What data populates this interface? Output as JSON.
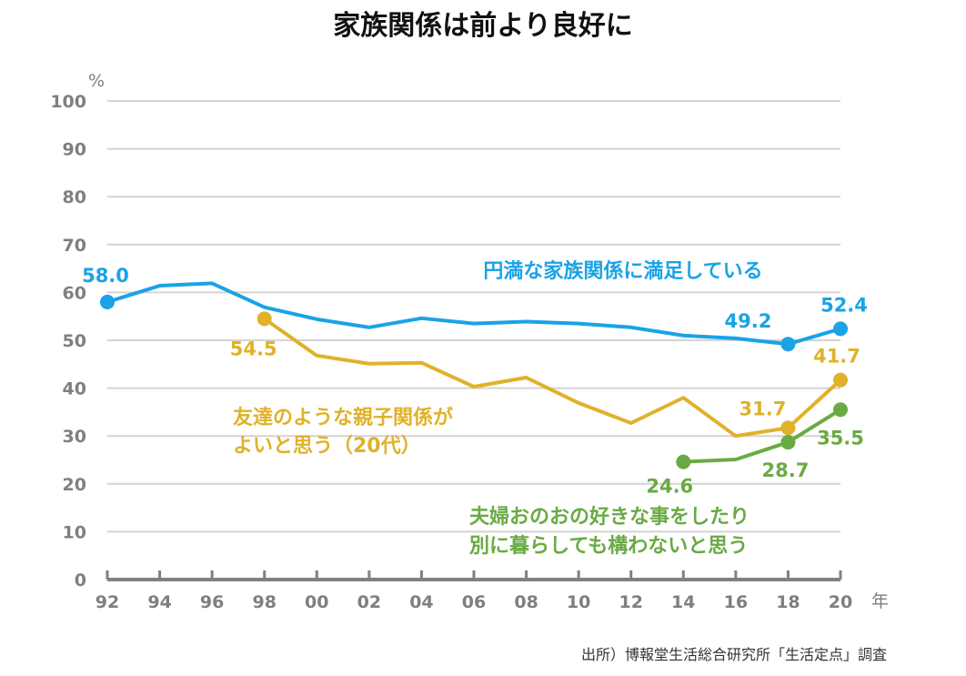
{
  "chart_data": {
    "type": "line",
    "title": "家族関係は前より良好に",
    "ylabel": "%",
    "xlabel": "年",
    "ylim": [
      0,
      100
    ],
    "yticks": [
      "0",
      "10",
      "20",
      "30",
      "40",
      "50",
      "60",
      "70",
      "80",
      "90",
      "100"
    ],
    "x": [
      "92",
      "94",
      "96",
      "98",
      "00",
      "02",
      "04",
      "06",
      "08",
      "10",
      "12",
      "14",
      "16",
      "18",
      "20"
    ],
    "grid": true,
    "series": [
      {
        "name": "円満な家族関係に満足している",
        "color": "#1aa3e6",
        "values": [
          58.0,
          61.4,
          61.9,
          56.9,
          54.4,
          52.7,
          54.6,
          53.5,
          53.9,
          53.5,
          52.7,
          51.0,
          50.4,
          49.2,
          52.4
        ],
        "labeled": [
          {
            "index": 0,
            "text": "58.0"
          },
          {
            "index": 13,
            "text": "49.2"
          },
          {
            "index": 14,
            "text": "52.4"
          }
        ]
      },
      {
        "name": "友達のような親子関係がよいと思う（20代）",
        "name_lines": [
          "友達のような親子関係が",
          "よいと思う（20代）"
        ],
        "color": "#e0b22a",
        "values": [
          null,
          null,
          null,
          54.5,
          46.8,
          45.1,
          45.3,
          40.3,
          42.2,
          36.9,
          32.7,
          38.0,
          30.0,
          31.7,
          41.7
        ],
        "labeled": [
          {
            "index": 3,
            "text": "54.5"
          },
          {
            "index": 13,
            "text": "31.7"
          },
          {
            "index": 14,
            "text": "41.7"
          }
        ]
      },
      {
        "name": "夫婦おのおの好きな事をしたり別に暮らしても構わないと思う",
        "name_lines": [
          "夫婦おのおの好きな事をしたり",
          "別に暮らしても構わないと思う"
        ],
        "color": "#6aaa44",
        "values": [
          null,
          null,
          null,
          null,
          null,
          null,
          null,
          null,
          null,
          null,
          null,
          24.6,
          25.1,
          28.7,
          35.5
        ],
        "labeled": [
          {
            "index": 11,
            "text": "24.6"
          },
          {
            "index": 13,
            "text": "28.7"
          },
          {
            "index": 14,
            "text": "35.5"
          }
        ]
      }
    ],
    "source": "出所）博報堂生活総合研究所「生活定点」調査"
  }
}
